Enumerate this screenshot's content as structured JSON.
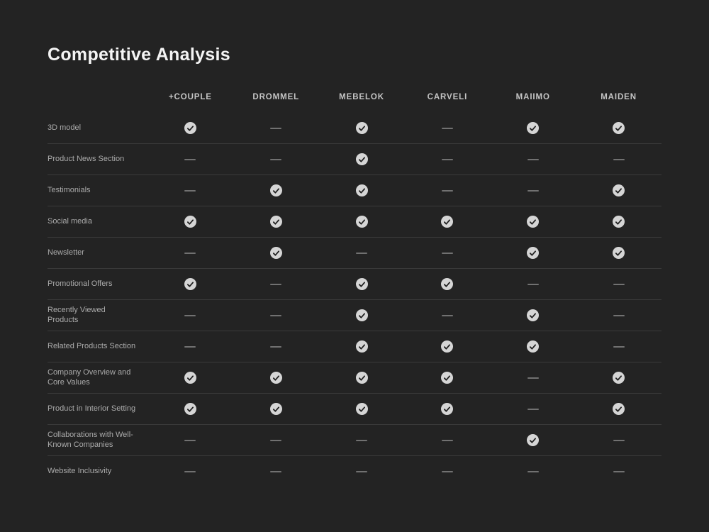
{
  "page": {
    "title": "Competitive Analysis"
  },
  "chart_data": {
    "type": "table",
    "title": "Competitive Analysis",
    "columns": [
      "+COUPLE",
      "DROMMEL",
      "MEBELOK",
      "CARVELI",
      "MAIIMO",
      "MAIDEN"
    ],
    "rows": [
      {
        "feature": "3D model",
        "values": [
          true,
          false,
          true,
          false,
          true,
          true
        ]
      },
      {
        "feature": "Product News Section",
        "values": [
          false,
          false,
          true,
          false,
          false,
          false
        ]
      },
      {
        "feature": "Testimonials",
        "values": [
          false,
          true,
          true,
          false,
          false,
          true
        ]
      },
      {
        "feature": "Social media",
        "values": [
          true,
          true,
          true,
          true,
          true,
          true
        ]
      },
      {
        "feature": "Newsletter",
        "values": [
          false,
          true,
          false,
          false,
          true,
          true
        ]
      },
      {
        "feature": "Promotional Offers",
        "values": [
          true,
          false,
          true,
          true,
          false,
          false
        ]
      },
      {
        "feature": "Recently Viewed Products",
        "values": [
          false,
          false,
          true,
          false,
          true,
          false
        ]
      },
      {
        "feature": "Related Products Section",
        "values": [
          false,
          false,
          true,
          true,
          true,
          false
        ]
      },
      {
        "feature": "Company Overview and Core Values",
        "values": [
          true,
          true,
          true,
          true,
          false,
          true
        ]
      },
      {
        "feature": "Product in Interior Setting",
        "values": [
          true,
          true,
          true,
          true,
          false,
          true
        ]
      },
      {
        "feature": "Collaborations with Well-Known Companies",
        "values": [
          false,
          false,
          false,
          false,
          true,
          false
        ]
      },
      {
        "feature": "Website Inclusivity",
        "values": [
          false,
          false,
          false,
          false,
          false,
          false
        ]
      }
    ]
  },
  "style": {
    "colors": {
      "background": "#232323",
      "title_text": "#f4f4f4",
      "header_text": "#c4c4c4",
      "label_text": "#ababab",
      "divider": "#3a3a3a",
      "dash": "#717171",
      "check_circle": "#d5d5d5",
      "check_mark": "#1f1f1f"
    }
  }
}
